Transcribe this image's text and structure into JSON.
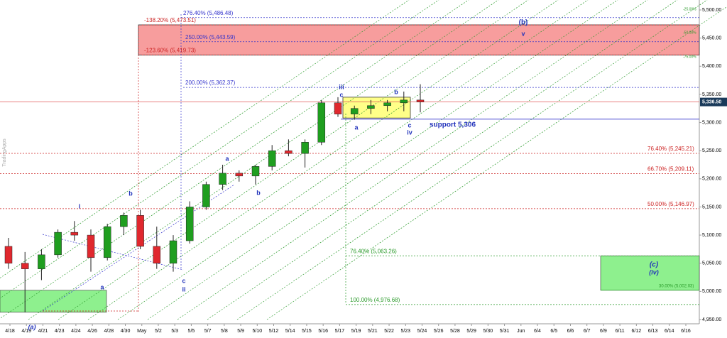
{
  "chart_data": {
    "type": "candlestick",
    "watermark": "TradingApps",
    "up_color": "#1f9e1f",
    "down_color": "#e0282e",
    "open": [
      5080,
      5050,
      5040,
      5065,
      5105,
      5100,
      5060,
      5115,
      5135,
      5080,
      5050,
      5090,
      5150,
      5190,
      5210,
      5205,
      5222,
      5250,
      5245,
      5265,
      5335,
      5315,
      5325,
      5330,
      5335,
      5340
    ],
    "high": [
      5095,
      5070,
      5075,
      5110,
      5125,
      5110,
      5120,
      5140,
      5145,
      5115,
      5100,
      5160,
      5195,
      5225,
      5215,
      5225,
      5260,
      5270,
      5270,
      5340,
      5345,
      5330,
      5340,
      5340,
      5355,
      5368
    ],
    "low": [
      5040,
      4963,
      5020,
      5060,
      5090,
      5035,
      5055,
      5100,
      5075,
      5040,
      5035,
      5085,
      5145,
      5180,
      5195,
      5190,
      5215,
      5240,
      5220,
      5260,
      5310,
      5305,
      5315,
      5320,
      5320,
      5318
    ],
    "close": [
      5050,
      5040,
      5065,
      5105,
      5100,
      5060,
      5115,
      5135,
      5080,
      5050,
      5090,
      5150,
      5190,
      5210,
      5205,
      5222,
      5250,
      5245,
      5265,
      5335,
      5315,
      5325,
      5330,
      5335,
      5340,
      5336.5
    ],
    "ylim": [
      4950,
      5500
    ],
    "yticks": [
      {
        "value": 4950,
        "label": "4,950.00"
      },
      {
        "value": 5000,
        "label": "5,000.00"
      },
      {
        "value": 5050,
        "label": "5,050.00"
      },
      {
        "value": 5100,
        "label": "5,100.00"
      },
      {
        "value": 5150,
        "label": "5,150.00"
      },
      {
        "value": 5200,
        "label": "5,200.00"
      },
      {
        "value": 5250,
        "label": "5,250.00"
      },
      {
        "value": 5300,
        "label": "5,300.00"
      },
      {
        "value": 5350,
        "label": "5,350.00"
      },
      {
        "value": 5400,
        "label": "5,400.00"
      },
      {
        "value": 5450,
        "label": "5,450.00"
      },
      {
        "value": 5500,
        "label": "5,500.00"
      }
    ],
    "x_labels": [
      "4/18",
      "4/19",
      "4/21",
      "4/23",
      "4/24",
      "4/26",
      "4/28",
      "4/30",
      "May",
      "5/2",
      "5/3",
      "5/5",
      "5/7",
      "5/8",
      "5/9",
      "5/10",
      "5/12",
      "5/14",
      "5/15",
      "5/16",
      "5/17",
      "5/19",
      "5/21",
      "5/22",
      "5/23",
      "5/24",
      "5/26",
      "5/28",
      "5/29",
      "5/30",
      "5/31",
      "Jun",
      "6/4",
      "6/5",
      "6/6",
      "6/7",
      "6/9",
      "6/11",
      "6/12",
      "6/13",
      "6/14",
      "6/16"
    ],
    "levels": [
      {
        "label": "276.40% (5,486.48)",
        "value": 5486.48,
        "color": "#3333cc"
      },
      {
        "label": "-138.20% (5,473.51)",
        "value": 5473.51,
        "color": "#cc2222"
      },
      {
        "label": "250.00% (5,443.59)",
        "value": 5443.59,
        "color": "#3333cc"
      },
      {
        "label": "-123.60% (5,419.73)",
        "value": 5419.73,
        "color": "#cc2222"
      },
      {
        "label": "200.00% (5,362.37)",
        "value": 5362.37,
        "color": "#3333cc"
      },
      {
        "label": "76.40% (5,245.21)",
        "value": 5245.21,
        "color": "#cc2222"
      },
      {
        "label": "66.70% (5,209.11)",
        "value": 5209.11,
        "color": "#cc2222"
      },
      {
        "label": "50.00% (5,146.97)",
        "value": 5146.97,
        "color": "#cc2222"
      },
      {
        "label": "76.40% (5,063.26)",
        "value": 5063.26,
        "color": "#2a9a2a"
      },
      {
        "label": "100.00% (4,976.68)",
        "value": 4976.68,
        "color": "#2a9a2a"
      },
      {
        "label": "30.00% (5,002.03)",
        "value": 5002.03,
        "color": "#2a9a2a"
      }
    ],
    "current_price": {
      "value": 5336.5,
      "label": "5,336.50"
    },
    "support": {
      "value": 5306,
      "label": "support 5,306"
    },
    "fan_labels": [
      "-25.00%",
      "-50.00%",
      "-75.00%"
    ],
    "annotations": [
      "(a)",
      "i",
      "b",
      "a",
      "c",
      "ii",
      "a",
      "b",
      "iii",
      "c",
      "a",
      "b",
      "c",
      "iv",
      "(b)",
      "v",
      "(c)",
      "(iv)"
    ]
  }
}
